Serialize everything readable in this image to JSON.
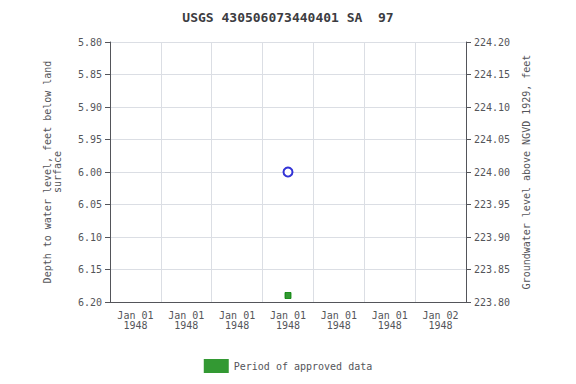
{
  "chart_data": {
    "type": "scatter",
    "title": "USGS 430506073440401 SA  97",
    "y_label": "Depth to water level, feet below land\nsurface",
    "y2_label": "Groundwater level above NGVD 1929, feet",
    "categories": [
      "Jan 01\n1948",
      "Jan 01\n1948",
      "Jan 01\n1948",
      "Jan 01\n1948",
      "Jan 01\n1948",
      "Jan 01\n1948",
      "Jan 02\n1948"
    ],
    "series": [
      {
        "color": "#0000cc",
        "marker": "circle",
        "values": [
          null,
          null,
          null,
          6.0,
          null,
          null,
          null
        ]
      },
      {
        "name": "Period of approved data",
        "color": "#008000",
        "marker": "square",
        "values": [
          null,
          null,
          null,
          6.19,
          null,
          null,
          null
        ]
      }
    ],
    "ylim": [
      6.2,
      5.8
    ],
    "yticks": [
      {
        "value": 5.8,
        "label": "5.80"
      },
      {
        "value": 5.85,
        "label": "5.85"
      },
      {
        "value": 5.9,
        "label": "5.90"
      },
      {
        "value": 5.95,
        "label": "5.95"
      },
      {
        "value": 6.0,
        "label": "6.00"
      },
      {
        "value": 6.05,
        "label": "6.05"
      },
      {
        "value": 6.1,
        "label": "6.10"
      },
      {
        "value": 6.15,
        "label": "6.15"
      },
      {
        "value": 6.2,
        "label": "6.20"
      }
    ],
    "y2lim": [
      223.8,
      224.2
    ],
    "y2ticks": [
      {
        "value": 224.2,
        "label": "224.20"
      },
      {
        "value": 224.15,
        "label": "224.15"
      },
      {
        "value": 224.1,
        "label": "224.10"
      },
      {
        "value": 224.05,
        "label": "224.05"
      },
      {
        "value": 224.0,
        "label": "224.00"
      },
      {
        "value": 223.95,
        "label": "223.95"
      },
      {
        "value": 223.9,
        "label": "223.90"
      },
      {
        "value": 223.85,
        "label": "223.85"
      },
      {
        "value": 223.8,
        "label": "223.80"
      }
    ],
    "grid": true,
    "legend": "bottom"
  }
}
